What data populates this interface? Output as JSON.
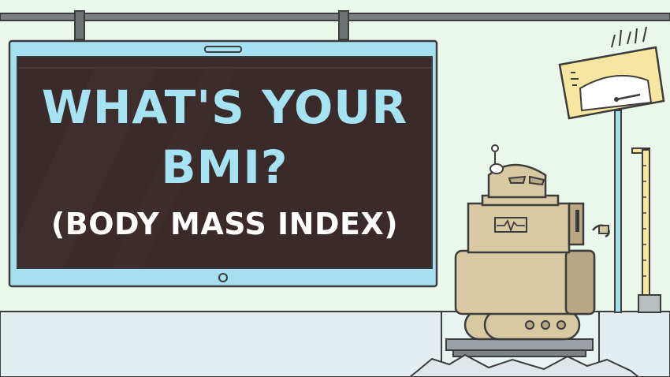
{
  "screen": {
    "title_line1": "WHAT'S YOUR",
    "title_line2": "BMI?",
    "subtitle": "(BODY MASS INDEX)"
  },
  "colors": {
    "background": "#eaf7ea",
    "screen_frame": "#a6dff0",
    "screen_bg": "#3a2a2a",
    "title_text": "#a6e3f2",
    "subtitle_text": "#ffffff",
    "robot_body": "#d8c9a3",
    "robot_dark": "#b9a885",
    "scale_panel": "#f6e6a0",
    "outline": "#3c3c3c"
  },
  "icons": [
    "robot-icon",
    "scale-gauge-icon",
    "height-ruler-icon",
    "waveform-icon"
  ]
}
